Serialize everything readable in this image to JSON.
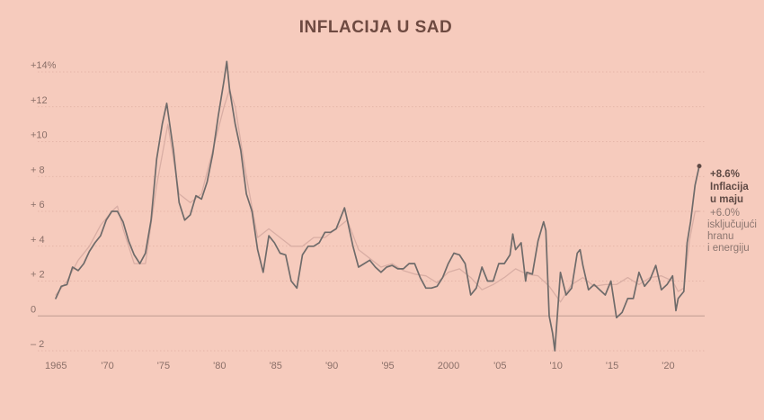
{
  "chart_data": {
    "type": "line",
    "title": "INFLACIJA U SAD",
    "xlim": [
      1965,
      2022.5
    ],
    "ylim": [
      -3,
      15
    ],
    "y_ticks": [
      {
        "value": 14,
        "label": "+14%"
      },
      {
        "value": 12,
        "label": "+12"
      },
      {
        "value": 10,
        "label": "+10"
      },
      {
        "value": 8,
        "label": "+ 8"
      },
      {
        "value": 6,
        "label": "+ 6"
      },
      {
        "value": 4,
        "label": "+ 4"
      },
      {
        "value": 2,
        "label": "+ 2"
      },
      {
        "value": 0,
        "label": "0"
      },
      {
        "value": -2,
        "label": "– 2"
      }
    ],
    "x_ticks": [
      {
        "value": 1965,
        "label": "1965"
      },
      {
        "value": 1970,
        "label": "'70"
      },
      {
        "value": 1975,
        "label": "'75"
      },
      {
        "value": 1980,
        "label": "'80"
      },
      {
        "value": 1985,
        "label": "'85"
      },
      {
        "value": 1990,
        "label": "'90"
      },
      {
        "value": 1995,
        "label": "'95"
      },
      {
        "value": 2000,
        "label": "2000"
      },
      {
        "value": 2005,
        "label": "'05"
      },
      {
        "value": 2010,
        "label": "'10"
      },
      {
        "value": 2015,
        "label": "'15"
      },
      {
        "value": 2020,
        "label": "'20"
      }
    ],
    "grid": true,
    "series": [
      {
        "key": "headline",
        "color": "#6f6b6a",
        "points": [
          [
            1965.0,
            1.0
          ],
          [
            1965.5,
            1.7
          ],
          [
            1966.0,
            1.8
          ],
          [
            1966.5,
            2.8
          ],
          [
            1967.0,
            2.6
          ],
          [
            1967.5,
            3.0
          ],
          [
            1968.0,
            3.7
          ],
          [
            1968.5,
            4.2
          ],
          [
            1969.0,
            4.6
          ],
          [
            1969.5,
            5.5
          ],
          [
            1970.0,
            6.0
          ],
          [
            1970.5,
            6.0
          ],
          [
            1971.0,
            5.4
          ],
          [
            1971.5,
            4.3
          ],
          [
            1972.0,
            3.5
          ],
          [
            1972.5,
            3.0
          ],
          [
            1973.0,
            3.6
          ],
          [
            1973.5,
            5.5
          ],
          [
            1974.0,
            9.0
          ],
          [
            1974.5,
            11.0
          ],
          [
            1974.9,
            12.2
          ],
          [
            1975.5,
            9.5
          ],
          [
            1976.0,
            6.5
          ],
          [
            1976.5,
            5.5
          ],
          [
            1977.0,
            5.8
          ],
          [
            1977.5,
            6.9
          ],
          [
            1978.0,
            6.7
          ],
          [
            1978.5,
            7.7
          ],
          [
            1979.0,
            9.3
          ],
          [
            1979.5,
            11.5
          ],
          [
            1980.0,
            13.5
          ],
          [
            1980.25,
            14.6
          ],
          [
            1980.5,
            13.0
          ],
          [
            1981.0,
            11.0
          ],
          [
            1981.5,
            9.5
          ],
          [
            1982.0,
            7.0
          ],
          [
            1982.5,
            6.0
          ],
          [
            1983.0,
            3.8
          ],
          [
            1983.5,
            2.5
          ],
          [
            1984.0,
            4.6
          ],
          [
            1984.5,
            4.2
          ],
          [
            1985.0,
            3.6
          ],
          [
            1985.5,
            3.5
          ],
          [
            1986.0,
            2.0
          ],
          [
            1986.5,
            1.6
          ],
          [
            1987.0,
            3.5
          ],
          [
            1987.5,
            4.0
          ],
          [
            1988.0,
            4.0
          ],
          [
            1988.5,
            4.2
          ],
          [
            1989.0,
            4.8
          ],
          [
            1989.5,
            4.8
          ],
          [
            1990.0,
            5.0
          ],
          [
            1990.75,
            6.2
          ],
          [
            1991.0,
            5.5
          ],
          [
            1991.5,
            4.0
          ],
          [
            1992.0,
            2.8
          ],
          [
            1992.5,
            3.0
          ],
          [
            1993.0,
            3.2
          ],
          [
            1993.5,
            2.8
          ],
          [
            1994.0,
            2.5
          ],
          [
            1994.5,
            2.8
          ],
          [
            1995.0,
            2.9
          ],
          [
            1995.5,
            2.7
          ],
          [
            1996.0,
            2.7
          ],
          [
            1996.5,
            3.0
          ],
          [
            1997.0,
            3.0
          ],
          [
            1997.5,
            2.2
          ],
          [
            1998.0,
            1.6
          ],
          [
            1998.5,
            1.6
          ],
          [
            1999.0,
            1.7
          ],
          [
            1999.5,
            2.2
          ],
          [
            2000.0,
            3.0
          ],
          [
            2000.5,
            3.6
          ],
          [
            2001.0,
            3.5
          ],
          [
            2001.5,
            3.0
          ],
          [
            2002.0,
            1.2
          ],
          [
            2002.5,
            1.6
          ],
          [
            2003.0,
            2.8
          ],
          [
            2003.5,
            2.0
          ],
          [
            2004.0,
            2.0
          ],
          [
            2004.5,
            3.0
          ],
          [
            2005.0,
            3.0
          ],
          [
            2005.5,
            3.5
          ],
          [
            2005.75,
            4.7
          ],
          [
            2006.0,
            3.8
          ],
          [
            2006.5,
            4.2
          ],
          [
            2006.9,
            2.0
          ],
          [
            2007.0,
            2.5
          ],
          [
            2007.5,
            2.4
          ],
          [
            2008.0,
            4.3
          ],
          [
            2008.5,
            5.4
          ],
          [
            2008.7,
            4.9
          ],
          [
            2009.0,
            0.0
          ],
          [
            2009.3,
            -1.0
          ],
          [
            2009.5,
            -2.0
          ],
          [
            2010.0,
            2.5
          ],
          [
            2010.5,
            1.2
          ],
          [
            2011.0,
            1.6
          ],
          [
            2011.5,
            3.6
          ],
          [
            2011.75,
            3.8
          ],
          [
            2012.0,
            2.9
          ],
          [
            2012.5,
            1.5
          ],
          [
            2013.0,
            1.8
          ],
          [
            2013.5,
            1.5
          ],
          [
            2014.0,
            1.2
          ],
          [
            2014.5,
            2.0
          ],
          [
            2015.0,
            -0.1
          ],
          [
            2015.5,
            0.2
          ],
          [
            2016.0,
            1.0
          ],
          [
            2016.5,
            1.0
          ],
          [
            2017.0,
            2.5
          ],
          [
            2017.5,
            1.7
          ],
          [
            2018.0,
            2.1
          ],
          [
            2018.5,
            2.9
          ],
          [
            2019.0,
            1.5
          ],
          [
            2019.5,
            1.8
          ],
          [
            2020.0,
            2.3
          ],
          [
            2020.3,
            0.3
          ],
          [
            2020.5,
            1.0
          ],
          [
            2021.0,
            1.4
          ],
          [
            2021.3,
            4.2
          ],
          [
            2021.6,
            5.4
          ],
          [
            2022.0,
            7.5
          ],
          [
            2022.38,
            8.6
          ]
        ]
      },
      {
        "key": "core",
        "color": "#d9aea4",
        "points": [
          [
            1965.0,
            1.2
          ],
          [
            1966.0,
            2.0
          ],
          [
            1967.0,
            3.2
          ],
          [
            1968.0,
            4.0
          ],
          [
            1969.0,
            5.2
          ],
          [
            1970.0,
            6.0
          ],
          [
            1970.5,
            6.3
          ],
          [
            1971.0,
            5.0
          ],
          [
            1972.0,
            3.0
          ],
          [
            1973.0,
            3.0
          ],
          [
            1974.0,
            7.5
          ],
          [
            1975.0,
            11.0
          ],
          [
            1975.5,
            9.0
          ],
          [
            1976.0,
            7.0
          ],
          [
            1977.0,
            6.5
          ],
          [
            1978.0,
            7.0
          ],
          [
            1979.0,
            9.5
          ],
          [
            1980.0,
            12.0
          ],
          [
            1980.5,
            13.0
          ],
          [
            1981.0,
            12.0
          ],
          [
            1982.0,
            8.0
          ],
          [
            1983.0,
            4.5
          ],
          [
            1984.0,
            5.0
          ],
          [
            1985.0,
            4.5
          ],
          [
            1986.0,
            4.0
          ],
          [
            1987.0,
            4.0
          ],
          [
            1988.0,
            4.5
          ],
          [
            1989.0,
            4.5
          ],
          [
            1990.0,
            5.0
          ],
          [
            1991.0,
            5.5
          ],
          [
            1992.0,
            3.8
          ],
          [
            1993.0,
            3.3
          ],
          [
            1994.0,
            2.8
          ],
          [
            1995.0,
            3.0
          ],
          [
            1996.0,
            2.6
          ],
          [
            1997.0,
            2.4
          ],
          [
            1998.0,
            2.3
          ],
          [
            1999.0,
            1.9
          ],
          [
            2000.0,
            2.5
          ],
          [
            2001.0,
            2.7
          ],
          [
            2002.0,
            2.2
          ],
          [
            2003.0,
            1.5
          ],
          [
            2004.0,
            1.8
          ],
          [
            2005.0,
            2.2
          ],
          [
            2006.0,
            2.7
          ],
          [
            2007.0,
            2.4
          ],
          [
            2008.0,
            2.3
          ],
          [
            2009.0,
            1.7
          ],
          [
            2010.0,
            0.8
          ],
          [
            2011.0,
            1.8
          ],
          [
            2012.0,
            2.2
          ],
          [
            2013.0,
            1.7
          ],
          [
            2014.0,
            1.8
          ],
          [
            2015.0,
            1.8
          ],
          [
            2016.0,
            2.2
          ],
          [
            2017.0,
            1.8
          ],
          [
            2018.0,
            2.2
          ],
          [
            2019.0,
            2.3
          ],
          [
            2020.0,
            2.0
          ],
          [
            2020.5,
            1.4
          ],
          [
            2021.0,
            1.6
          ],
          [
            2021.5,
            4.3
          ],
          [
            2022.0,
            6.0
          ],
          [
            2022.38,
            6.0
          ]
        ]
      }
    ],
    "annotations": {
      "headline": {
        "value": "+8.6%",
        "lines": [
          "Inflacija",
          "u maju"
        ]
      },
      "core": {
        "value": "+6.0%",
        "lines": [
          "isključujući",
          "hranu",
          "i energiju"
        ]
      }
    }
  }
}
